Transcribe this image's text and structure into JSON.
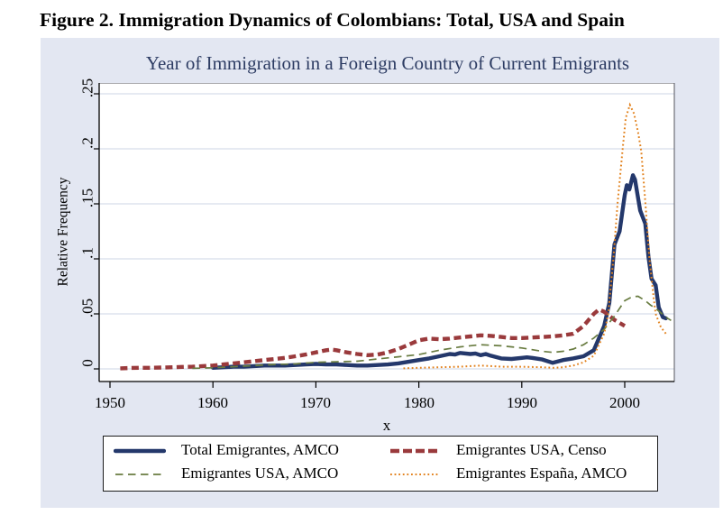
{
  "page": {
    "heading": "Figure 2. Immigration Dynamics of Colombians: Total, USA and Spain"
  },
  "chart": {
    "title": "Year of Immigration in a Foreign Country of Current Emigrants",
    "ylabel": "Relative Frequency",
    "xlabel": "x",
    "x_ticks": [
      "1950",
      "1960",
      "1970",
      "1980",
      "1990",
      "2000"
    ],
    "y_ticks": [
      "0",
      ".05",
      ".1",
      ".15",
      ".2",
      ".25"
    ],
    "colors": {
      "figure_bg": "#e3e7f2",
      "title": "#2d3c63",
      "grid": "#d8dde9"
    }
  },
  "chart_data": {
    "type": "line",
    "title": "Year of Immigration in a Foreign Country of Current Emigrants",
    "xlabel": "x",
    "ylabel": "Relative Frequency",
    "xlim": [
      1949,
      2004.8
    ],
    "ylim": [
      0,
      0.26
    ],
    "x_tick_values": [
      1950,
      1960,
      1970,
      1980,
      1990,
      2000
    ],
    "y_tick_values": [
      0,
      0.05,
      0.1,
      0.15,
      0.2,
      0.25
    ],
    "grid": "horizontal",
    "legend_position": "bottom",
    "series": [
      {
        "id": "total-amco",
        "name": "Total Emigrantes, AMCO",
        "color": "#24386b",
        "style": "solid-thick",
        "points": [
          [
            1960,
            0.001
          ],
          [
            1961,
            0.0015
          ],
          [
            1962,
            0.002
          ],
          [
            1963,
            0.002
          ],
          [
            1964,
            0.0025
          ],
          [
            1965,
            0.003
          ],
          [
            1966,
            0.003
          ],
          [
            1967,
            0.003
          ],
          [
            1968,
            0.0035
          ],
          [
            1969,
            0.004
          ],
          [
            1970,
            0.0045
          ],
          [
            1971,
            0.004
          ],
          [
            1972,
            0.004
          ],
          [
            1973,
            0.0035
          ],
          [
            1974,
            0.003
          ],
          [
            1975,
            0.003
          ],
          [
            1976,
            0.0035
          ],
          [
            1977,
            0.004
          ],
          [
            1978,
            0.005
          ],
          [
            1979,
            0.0065
          ],
          [
            1980,
            0.008
          ],
          [
            1981,
            0.0095
          ],
          [
            1982,
            0.0115
          ],
          [
            1983,
            0.0135
          ],
          [
            1983.5,
            0.013
          ],
          [
            1984,
            0.0145
          ],
          [
            1985,
            0.0135
          ],
          [
            1985.5,
            0.014
          ],
          [
            1986,
            0.0125
          ],
          [
            1986.5,
            0.0135
          ],
          [
            1987,
            0.012
          ],
          [
            1988,
            0.0095
          ],
          [
            1989,
            0.009
          ],
          [
            1990,
            0.01
          ],
          [
            1990.5,
            0.0105
          ],
          [
            1991,
            0.01
          ],
          [
            1992,
            0.0085
          ],
          [
            1993,
            0.0055
          ],
          [
            1994,
            0.008
          ],
          [
            1995,
            0.0095
          ],
          [
            1996,
            0.0115
          ],
          [
            1997,
            0.017
          ],
          [
            1998,
            0.039
          ],
          [
            1998.5,
            0.06
          ],
          [
            1999,
            0.113
          ],
          [
            1999.5,
            0.125
          ],
          [
            2000,
            0.158
          ],
          [
            2000.2,
            0.167
          ],
          [
            2000.45,
            0.163
          ],
          [
            2000.8,
            0.176
          ],
          [
            2001,
            0.172
          ],
          [
            2001.5,
            0.144
          ],
          [
            2002,
            0.132
          ],
          [
            2002.3,
            0.102
          ],
          [
            2002.6,
            0.082
          ],
          [
            2003,
            0.076
          ],
          [
            2003.3,
            0.056
          ],
          [
            2003.7,
            0.047
          ],
          [
            2004,
            0.046
          ]
        ]
      },
      {
        "id": "usa-censo",
        "name": "Emigrantes USA, Censo",
        "color": "#9a3a3c",
        "style": "dashed-thick",
        "points": [
          [
            1951,
            0.0005
          ],
          [
            1952,
            0.0008
          ],
          [
            1953,
            0.001
          ],
          [
            1954,
            0.001
          ],
          [
            1955,
            0.0012
          ],
          [
            1956,
            0.0015
          ],
          [
            1957,
            0.0018
          ],
          [
            1958,
            0.002
          ],
          [
            1959,
            0.0025
          ],
          [
            1960,
            0.003
          ],
          [
            1961,
            0.004
          ],
          [
            1962,
            0.005
          ],
          [
            1963,
            0.006
          ],
          [
            1964,
            0.007
          ],
          [
            1965,
            0.008
          ],
          [
            1966,
            0.009
          ],
          [
            1967,
            0.01
          ],
          [
            1968,
            0.0115
          ],
          [
            1969,
            0.013
          ],
          [
            1970,
            0.015
          ],
          [
            1971,
            0.017
          ],
          [
            1971.5,
            0.0175
          ],
          [
            1972,
            0.017
          ],
          [
            1973,
            0.015
          ],
          [
            1974,
            0.0135
          ],
          [
            1975,
            0.0125
          ],
          [
            1976,
            0.013
          ],
          [
            1977,
            0.015
          ],
          [
            1978,
            0.018
          ],
          [
            1979,
            0.022
          ],
          [
            1980,
            0.026
          ],
          [
            1981,
            0.0275
          ],
          [
            1982,
            0.027
          ],
          [
            1983,
            0.0275
          ],
          [
            1984,
            0.0285
          ],
          [
            1985,
            0.0295
          ],
          [
            1986,
            0.0305
          ],
          [
            1987,
            0.03
          ],
          [
            1988,
            0.029
          ],
          [
            1989,
            0.028
          ],
          [
            1990,
            0.028
          ],
          [
            1991,
            0.0285
          ],
          [
            1992,
            0.029
          ],
          [
            1993,
            0.0295
          ],
          [
            1994,
            0.0305
          ],
          [
            1995,
            0.032
          ],
          [
            1996,
            0.039
          ],
          [
            1997,
            0.05
          ],
          [
            1997.5,
            0.054
          ],
          [
            1998,
            0.052
          ],
          [
            1999,
            0.0445
          ],
          [
            2000,
            0.039
          ]
        ]
      },
      {
        "id": "usa-amco",
        "name": "Emigrantes USA, AMCO",
        "color": "#697c41",
        "style": "dashed-thin",
        "points": [
          [
            1958,
            0.0005
          ],
          [
            1960,
            0.001
          ],
          [
            1962,
            0.002
          ],
          [
            1964,
            0.003
          ],
          [
            1966,
            0.004
          ],
          [
            1968,
            0.0045
          ],
          [
            1970,
            0.006
          ],
          [
            1972,
            0.0065
          ],
          [
            1974,
            0.007
          ],
          [
            1976,
            0.009
          ],
          [
            1978,
            0.011
          ],
          [
            1980,
            0.013
          ],
          [
            1982,
            0.017
          ],
          [
            1984,
            0.02
          ],
          [
            1986,
            0.022
          ],
          [
            1988,
            0.021
          ],
          [
            1990,
            0.019
          ],
          [
            1992,
            0.016
          ],
          [
            1993,
            0.015
          ],
          [
            1994,
            0.016
          ],
          [
            1995,
            0.018
          ],
          [
            1996,
            0.022
          ],
          [
            1997,
            0.028
          ],
          [
            1998,
            0.036
          ],
          [
            1999,
            0.048
          ],
          [
            2000,
            0.062
          ],
          [
            2000.7,
            0.0655
          ],
          [
            2001.3,
            0.066
          ],
          [
            2002,
            0.062
          ],
          [
            2002.5,
            0.058
          ],
          [
            2003,
            0.055
          ],
          [
            2003.5,
            0.051
          ],
          [
            2004,
            0.047
          ],
          [
            2004.5,
            0.044
          ]
        ]
      },
      {
        "id": "espana-amco",
        "name": "Emigrantes España, AMCO",
        "color": "#e2821e",
        "style": "dotted",
        "points": [
          [
            1978.5,
            0.0005
          ],
          [
            1980,
            0.001
          ],
          [
            1982,
            0.0015
          ],
          [
            1984,
            0.002
          ],
          [
            1985,
            0.0025
          ],
          [
            1986,
            0.003
          ],
          [
            1987,
            0.0025
          ],
          [
            1988,
            0.002
          ],
          [
            1990,
            0.002
          ],
          [
            1992,
            0.0015
          ],
          [
            1993,
            0.001
          ],
          [
            1994,
            0.0015
          ],
          [
            1995,
            0.003
          ],
          [
            1996,
            0.006
          ],
          [
            1997,
            0.012
          ],
          [
            1998,
            0.032
          ],
          [
            1998.4,
            0.05
          ],
          [
            1998.9,
            0.1
          ],
          [
            1999.3,
            0.15
          ],
          [
            1999.8,
            0.2
          ],
          [
            2000.1,
            0.228
          ],
          [
            2000.5,
            0.24
          ],
          [
            2000.9,
            0.232
          ],
          [
            2001.3,
            0.215
          ],
          [
            2001.6,
            0.198
          ],
          [
            2002,
            0.152
          ],
          [
            2002.4,
            0.1
          ],
          [
            2002.8,
            0.065
          ],
          [
            2003,
            0.05
          ],
          [
            2003.5,
            0.038
          ],
          [
            2004,
            0.032
          ]
        ]
      }
    ]
  }
}
